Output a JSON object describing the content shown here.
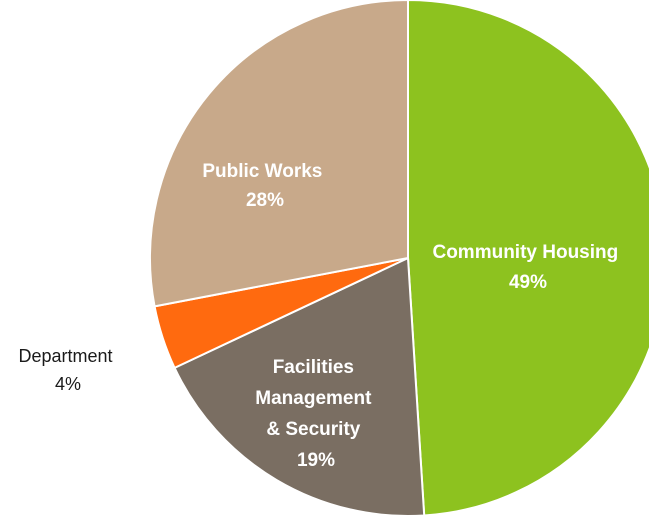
{
  "chart_data": {
    "type": "pie",
    "title": "",
    "slices": [
      {
        "name": "Community Housing",
        "value": 49,
        "label": "49%",
        "color": "#8dc21f"
      },
      {
        "name": "Facilities Management & Security",
        "value": 19,
        "label": "19%",
        "color": "#7a6e62"
      },
      {
        "name": "Department",
        "value": 4,
        "label": "4%",
        "color": "#ff6a0f"
      },
      {
        "name": "Public Works",
        "value": 28,
        "label": "28%",
        "color": "#c8a98a"
      }
    ],
    "start_position": "top",
    "direction": "clockwise",
    "legend": "none"
  }
}
